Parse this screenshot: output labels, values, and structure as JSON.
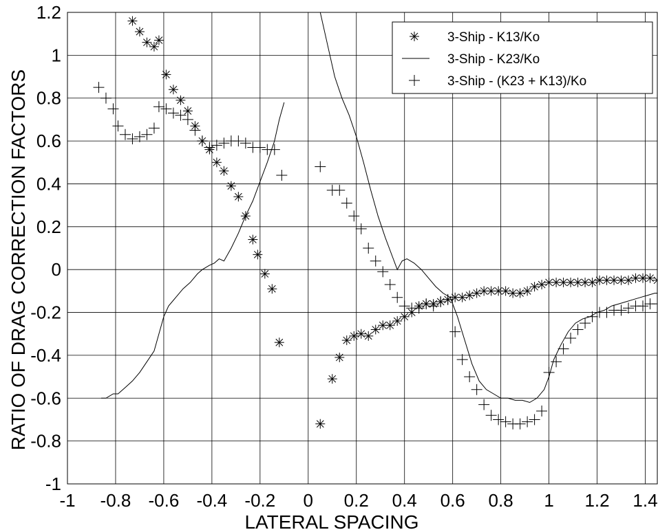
{
  "chart_data": {
    "type": "scatter",
    "xlabel": "LATERAL SPACING",
    "ylabel": "RATIO OF DRAG CORRECTION FACTORS",
    "xlim": [
      -1,
      1.45
    ],
    "ylim": [
      -1,
      1.2
    ],
    "xticks": [
      -1,
      -0.8,
      -0.6,
      -0.4,
      -0.2,
      0,
      0.2,
      0.4,
      0.6,
      0.8,
      1,
      1.2,
      1.4
    ],
    "xtick_labels": [
      "-1",
      "-0.8",
      "-0.6",
      "-0.4",
      "-0.2",
      "0",
      "0.2",
      "0.4",
      "0.6",
      "0.8",
      "1",
      "1.2",
      "1.4"
    ],
    "yticks": [
      -1,
      -0.8,
      -0.6,
      -0.4,
      -0.2,
      0,
      0.2,
      0.4,
      0.6,
      0.8,
      1,
      1.2
    ],
    "ytick_labels": [
      "-1",
      "-0.8",
      "-0.6",
      "-0.4",
      "-0.2",
      "0",
      "0.2",
      "0.4",
      "0.6",
      "0.8",
      "1",
      "1.2"
    ],
    "grid": true,
    "legend_position": "top-right",
    "series": [
      {
        "name": "3-Ship - K13/Ko",
        "marker": "asterisk",
        "x": [
          -0.73,
          -0.7,
          -0.67,
          -0.64,
          -0.62,
          -0.59,
          -0.56,
          -0.53,
          -0.5,
          -0.47,
          -0.44,
          -0.41,
          -0.38,
          -0.35,
          -0.32,
          -0.29,
          -0.26,
          -0.23,
          -0.21,
          -0.18,
          -0.15,
          -0.12,
          0.05,
          0.1,
          0.13,
          0.16,
          0.19,
          0.22,
          0.25,
          0.28,
          0.31,
          0.34,
          0.37,
          0.4,
          0.43,
          0.46,
          0.49,
          0.52,
          0.55,
          0.58,
          0.61,
          0.64,
          0.67,
          0.7,
          0.73,
          0.76,
          0.79,
          0.82,
          0.85,
          0.88,
          0.91,
          0.94,
          0.97,
          1.0,
          1.03,
          1.06,
          1.09,
          1.12,
          1.15,
          1.18,
          1.21,
          1.24,
          1.27,
          1.3,
          1.33,
          1.36,
          1.39,
          1.42,
          1.45
        ],
        "y": [
          1.16,
          1.11,
          1.06,
          1.04,
          1.07,
          0.91,
          0.84,
          0.79,
          0.74,
          0.67,
          0.6,
          0.56,
          0.5,
          0.46,
          0.39,
          0.34,
          0.25,
          0.14,
          0.07,
          -0.02,
          -0.09,
          -0.34,
          -0.72,
          -0.51,
          -0.41,
          -0.33,
          -0.31,
          -0.3,
          -0.31,
          -0.28,
          -0.26,
          -0.26,
          -0.24,
          -0.22,
          -0.2,
          -0.17,
          -0.16,
          -0.16,
          -0.15,
          -0.14,
          -0.13,
          -0.13,
          -0.12,
          -0.11,
          -0.1,
          -0.1,
          -0.1,
          -0.1,
          -0.11,
          -0.11,
          -0.1,
          -0.08,
          -0.07,
          -0.06,
          -0.06,
          -0.06,
          -0.06,
          -0.06,
          -0.06,
          -0.06,
          -0.05,
          -0.05,
          -0.05,
          -0.05,
          -0.05,
          -0.04,
          -0.04,
          -0.04,
          -0.05
        ]
      },
      {
        "name": "3-Ship - K23/Ko",
        "marker": "line",
        "x": [
          -0.86,
          -0.84,
          -0.81,
          -0.79,
          -0.76,
          -0.73,
          -0.7,
          -0.67,
          -0.64,
          -0.62,
          -0.6,
          -0.58,
          -0.55,
          -0.52,
          -0.49,
          -0.46,
          -0.44,
          -0.41,
          -0.39,
          -0.37,
          -0.35,
          -0.32,
          -0.29,
          -0.26,
          -0.23,
          -0.2,
          -0.17,
          -0.14,
          -0.12,
          -0.1,
          0.05,
          0.08,
          0.11,
          0.14,
          0.17,
          0.2,
          0.23,
          0.26,
          0.29,
          0.32,
          0.35,
          0.37,
          0.39,
          0.41,
          0.44,
          0.47,
          0.5,
          0.53,
          0.56,
          0.59,
          0.62,
          0.65,
          0.68,
          0.71,
          0.74,
          0.77,
          0.8,
          0.83,
          0.86,
          0.89,
          0.92,
          0.95,
          0.98,
          1.0,
          1.02,
          1.05,
          1.08,
          1.11,
          1.14,
          1.17,
          1.2,
          1.23,
          1.26,
          1.29,
          1.32,
          1.35,
          1.38,
          1.41,
          1.44,
          1.45
        ],
        "y": [
          -0.6,
          -0.6,
          -0.58,
          -0.58,
          -0.55,
          -0.52,
          -0.48,
          -0.43,
          -0.38,
          -0.3,
          -0.22,
          -0.17,
          -0.13,
          -0.09,
          -0.06,
          -0.02,
          0.0,
          0.02,
          0.03,
          0.05,
          0.04,
          0.1,
          0.17,
          0.25,
          0.32,
          0.41,
          0.5,
          0.6,
          0.7,
          0.78,
          1.2,
          1.05,
          0.9,
          0.8,
          0.72,
          0.62,
          0.5,
          0.37,
          0.25,
          0.15,
          0.06,
          0.0,
          0.04,
          0.05,
          0.03,
          0.0,
          -0.04,
          -0.08,
          -0.11,
          -0.13,
          -0.22,
          -0.33,
          -0.44,
          -0.52,
          -0.56,
          -0.58,
          -0.6,
          -0.6,
          -0.61,
          -0.61,
          -0.62,
          -0.6,
          -0.56,
          -0.5,
          -0.42,
          -0.35,
          -0.29,
          -0.25,
          -0.23,
          -0.22,
          -0.2,
          -0.19,
          -0.17,
          -0.16,
          -0.15,
          -0.14,
          -0.13,
          -0.12,
          -0.11,
          -0.11
        ]
      },
      {
        "name": "3-Ship - (K23 + K13)/Ko",
        "marker": "plus",
        "x": [
          -0.87,
          -0.84,
          -0.81,
          -0.79,
          -0.76,
          -0.73,
          -0.7,
          -0.67,
          -0.64,
          -0.62,
          -0.59,
          -0.56,
          -0.53,
          -0.5,
          -0.47,
          -0.44,
          -0.41,
          -0.38,
          -0.35,
          -0.32,
          -0.29,
          -0.26,
          -0.23,
          -0.2,
          -0.17,
          -0.14,
          -0.11,
          0.05,
          0.1,
          0.13,
          0.16,
          0.19,
          0.22,
          0.25,
          0.28,
          0.31,
          0.34,
          0.37,
          0.4,
          0.43,
          0.46,
          0.49,
          0.52,
          0.55,
          0.58,
          0.61,
          0.64,
          0.67,
          0.7,
          0.73,
          0.76,
          0.79,
          0.82,
          0.85,
          0.88,
          0.91,
          0.94,
          0.97,
          1.0,
          1.03,
          1.06,
          1.09,
          1.12,
          1.15,
          1.18,
          1.21,
          1.24,
          1.27,
          1.3,
          1.33,
          1.36,
          1.39,
          1.42,
          1.45
        ],
        "y": [
          0.85,
          0.8,
          0.75,
          0.67,
          0.63,
          0.61,
          0.62,
          0.63,
          0.66,
          0.76,
          0.75,
          0.73,
          0.72,
          0.7,
          0.65,
          0.6,
          0.57,
          0.58,
          0.59,
          0.6,
          0.6,
          0.59,
          0.57,
          0.57,
          0.56,
          0.56,
          0.44,
          0.48,
          0.37,
          0.37,
          0.31,
          0.25,
          0.19,
          0.1,
          0.04,
          -0.01,
          -0.07,
          -0.13,
          -0.17,
          -0.18,
          -0.18,
          -0.16,
          -0.17,
          -0.15,
          -0.14,
          -0.29,
          -0.42,
          -0.5,
          -0.56,
          -0.63,
          -0.68,
          -0.7,
          -0.71,
          -0.72,
          -0.72,
          -0.71,
          -0.7,
          -0.66,
          -0.48,
          -0.43,
          -0.37,
          -0.32,
          -0.28,
          -0.25,
          -0.22,
          -0.2,
          -0.2,
          -0.19,
          -0.19,
          -0.18,
          -0.17,
          -0.17,
          -0.16,
          -0.16
        ]
      }
    ]
  }
}
